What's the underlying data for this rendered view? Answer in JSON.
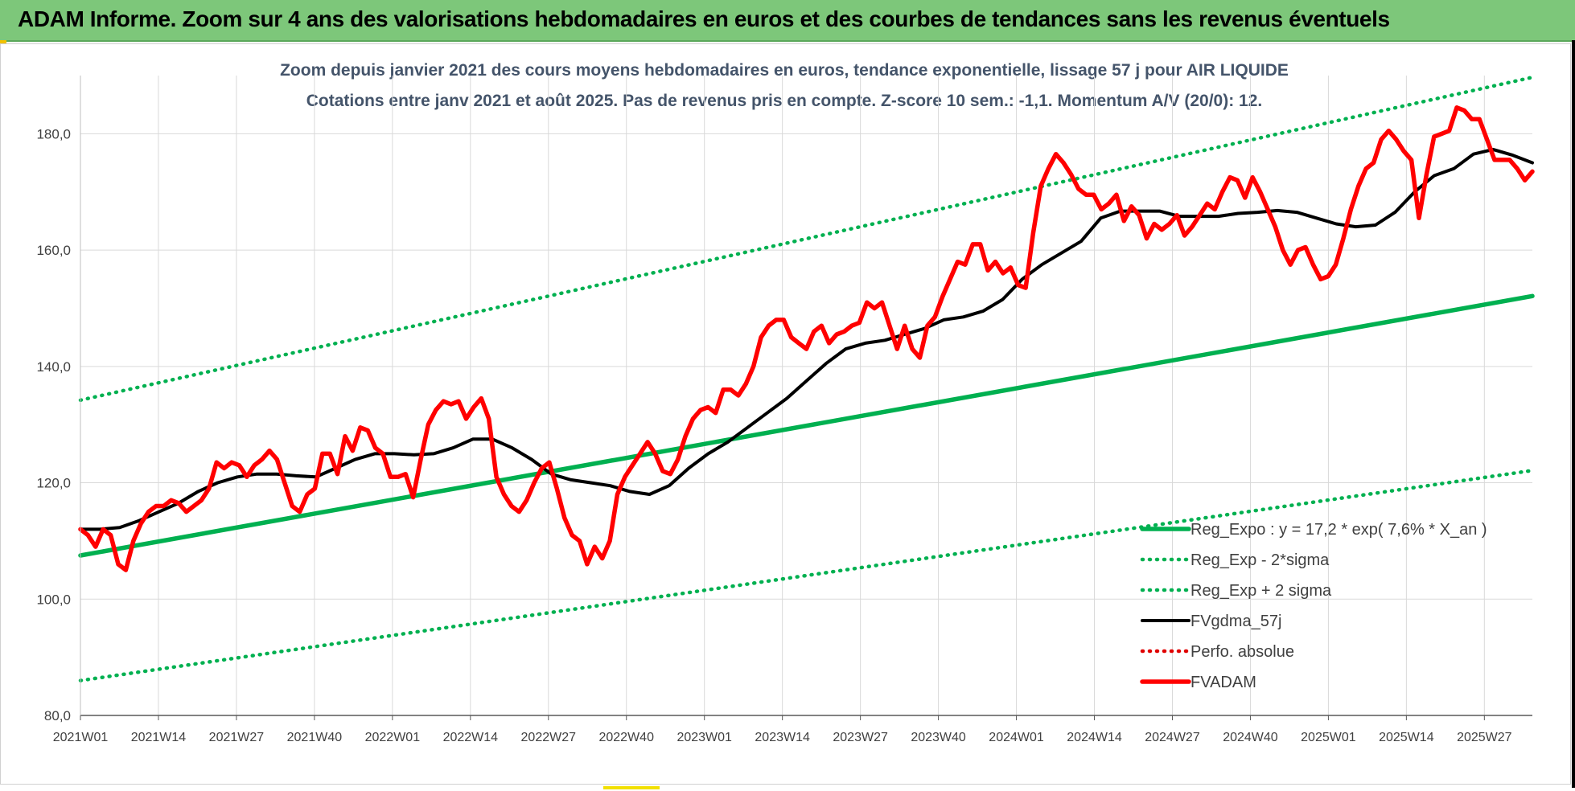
{
  "header": {
    "title": "ADAM Informe. Zoom sur 4 ans des valorisations hebdomadaires en euros et des courbes de tendances sans les revenus éventuels"
  },
  "chart_data": {
    "type": "line",
    "title_line1": "Zoom depuis janvier 2021 des cours moyens hebdomadaires en euros, tendance exponentielle, lissage 57 j pour AIR LIQUIDE",
    "title_line2": "Cotations entre janv 2021 et août 2025.  Pas de revenus pris en compte. Z-score 10 sem.: -1,1. Momentum A/V (20/0): 12.",
    "ylim": [
      80,
      190
    ],
    "yticks": [
      80,
      100,
      120,
      140,
      160,
      180
    ],
    "ytick_labels": [
      "80,0",
      "100,0",
      "120,0",
      "140,0",
      "160,0",
      "180,0"
    ],
    "xtick_labels": [
      "2021W01",
      "2021W14",
      "2021W27",
      "2021W40",
      "2022W01",
      "2022W14",
      "2022W27",
      "2022W40",
      "2023W01",
      "2023W14",
      "2023W27",
      "2023W40",
      "2024W01",
      "2024W14",
      "2024W27",
      "2024W40",
      "2025W01",
      "2025W14",
      "2025W27"
    ],
    "grid": true,
    "legend_position": "bottom-right",
    "series": [
      {
        "name": "Reg_Expo : y = 17,2 * exp( 7,6% *  X_an )",
        "style": "solid-thick",
        "color": "#00b050",
        "points": [
          [
            0,
            107.5
          ],
          [
            238,
            152.1
          ]
        ]
      },
      {
        "name": "Reg_Exp - 2*sigma",
        "style": "dotted",
        "color": "#00b050",
        "points": [
          [
            0,
            86.0
          ],
          [
            238,
            122.1
          ]
        ]
      },
      {
        "name": "Reg_Exp + 2 sigma",
        "style": "dotted",
        "color": "#00b050",
        "points": [
          [
            0,
            134.2
          ],
          [
            238,
            189.7
          ]
        ]
      },
      {
        "name": "FVgdma_57j",
        "style": "solid",
        "color": "#000000",
        "points": [
          [
            0,
            112
          ],
          [
            4,
            112
          ],
          [
            8,
            112.3
          ],
          [
            12,
            113.5
          ],
          [
            16,
            115
          ],
          [
            20,
            116.5
          ],
          [
            24,
            118.5
          ],
          [
            28,
            120
          ],
          [
            32,
            121
          ],
          [
            36,
            121.5
          ],
          [
            40,
            121.5
          ],
          [
            44,
            121.2
          ],
          [
            48,
            121
          ],
          [
            52,
            122.5
          ],
          [
            56,
            124
          ],
          [
            60,
            125
          ],
          [
            64,
            125
          ],
          [
            68,
            124.8
          ],
          [
            72,
            125
          ],
          [
            76,
            126
          ],
          [
            80,
            127.5
          ],
          [
            84,
            127.5
          ],
          [
            88,
            126
          ],
          [
            92,
            124
          ],
          [
            96,
            121.5
          ],
          [
            100,
            120.5
          ],
          [
            104,
            120
          ],
          [
            108,
            119.5
          ],
          [
            112,
            118.5
          ],
          [
            116,
            118
          ],
          [
            120,
            119.5
          ],
          [
            124,
            122.5
          ],
          [
            128,
            125
          ],
          [
            132,
            127
          ],
          [
            136,
            129.5
          ],
          [
            140,
            132
          ],
          [
            144,
            134.5
          ],
          [
            148,
            137.5
          ],
          [
            152,
            140.5
          ],
          [
            156,
            143
          ],
          [
            160,
            144
          ],
          [
            164,
            144.5
          ],
          [
            168,
            145.5
          ],
          [
            172,
            146.5
          ],
          [
            176,
            148
          ],
          [
            180,
            148.5
          ],
          [
            184,
            149.5
          ],
          [
            188,
            151.5
          ],
          [
            192,
            155
          ],
          [
            196,
            157.5
          ],
          [
            200,
            159.5
          ],
          [
            204,
            161.5
          ],
          [
            208,
            165.5
          ],
          [
            212,
            166.7
          ],
          [
            216,
            166.7
          ],
          [
            220,
            166.7
          ],
          [
            224,
            165.8
          ],
          [
            228,
            165.8
          ],
          [
            232,
            165.8
          ],
          [
            236,
            166.3
          ],
          [
            240,
            166.5
          ],
          [
            244,
            166.8
          ],
          [
            248,
            166.5
          ],
          [
            252,
            165.5
          ],
          [
            256,
            164.5
          ],
          [
            260,
            164
          ],
          [
            264,
            164.3
          ],
          [
            268,
            166.5
          ],
          [
            272,
            170
          ],
          [
            276,
            172.8
          ],
          [
            280,
            174
          ],
          [
            284,
            176.5
          ],
          [
            288,
            177.3
          ],
          [
            292,
            176.3
          ],
          [
            296,
            175
          ]
        ]
      },
      {
        "name": "Perfo. absolue",
        "style": "dotted",
        "color": "#e00000",
        "points": []
      },
      {
        "name": "FVADAM",
        "style": "solid-thick",
        "color": "#ff0000",
        "points": [
          [
            0,
            112
          ],
          [
            2,
            111
          ],
          [
            4,
            109
          ],
          [
            6,
            112
          ],
          [
            8,
            111
          ],
          [
            10,
            106
          ],
          [
            12,
            105
          ],
          [
            14,
            110
          ],
          [
            16,
            113
          ],
          [
            18,
            115
          ],
          [
            20,
            116
          ],
          [
            22,
            116
          ],
          [
            24,
            117
          ],
          [
            26,
            116.5
          ],
          [
            28,
            115
          ],
          [
            30,
            116
          ],
          [
            32,
            117
          ],
          [
            34,
            119
          ],
          [
            36,
            123.5
          ],
          [
            38,
            122.5
          ],
          [
            40,
            123.5
          ],
          [
            42,
            123
          ],
          [
            44,
            121
          ],
          [
            46,
            123
          ],
          [
            48,
            124
          ],
          [
            50,
            125.5
          ],
          [
            52,
            124
          ],
          [
            54,
            120
          ],
          [
            56,
            116
          ],
          [
            58,
            115
          ],
          [
            60,
            118
          ],
          [
            62,
            119
          ],
          [
            64,
            125
          ],
          [
            66,
            125
          ],
          [
            68,
            121.5
          ],
          [
            70,
            128
          ],
          [
            72,
            125.5
          ],
          [
            74,
            129.5
          ],
          [
            76,
            129
          ],
          [
            78,
            126
          ],
          [
            80,
            125
          ],
          [
            82,
            121
          ],
          [
            84,
            121
          ],
          [
            86,
            121.5
          ],
          [
            88,
            117.5
          ],
          [
            90,
            124
          ],
          [
            92,
            130
          ],
          [
            94,
            132.5
          ],
          [
            96,
            134
          ],
          [
            98,
            133.5
          ],
          [
            100,
            134
          ],
          [
            102,
            131
          ],
          [
            104,
            133
          ],
          [
            106,
            134.5
          ],
          [
            108,
            131
          ],
          [
            110,
            121
          ],
          [
            112,
            118
          ],
          [
            114,
            116
          ],
          [
            116,
            115
          ],
          [
            118,
            117
          ],
          [
            120,
            120
          ],
          [
            122,
            122.5
          ],
          [
            124,
            123.5
          ],
          [
            126,
            119
          ],
          [
            128,
            114
          ],
          [
            130,
            111
          ],
          [
            132,
            110
          ],
          [
            134,
            106
          ],
          [
            136,
            109
          ],
          [
            138,
            107
          ],
          [
            140,
            110
          ],
          [
            142,
            118
          ],
          [
            144,
            121
          ],
          [
            146,
            123
          ],
          [
            148,
            125
          ],
          [
            150,
            127
          ],
          [
            152,
            125
          ],
          [
            154,
            122
          ],
          [
            156,
            121.5
          ],
          [
            158,
            124
          ],
          [
            160,
            128
          ],
          [
            162,
            131
          ],
          [
            164,
            132.5
          ],
          [
            166,
            133
          ],
          [
            168,
            132
          ],
          [
            170,
            136
          ],
          [
            172,
            136
          ],
          [
            174,
            135
          ],
          [
            176,
            137
          ],
          [
            178,
            140
          ],
          [
            180,
            145
          ],
          [
            182,
            147
          ],
          [
            184,
            148
          ],
          [
            186,
            148
          ],
          [
            188,
            145
          ],
          [
            190,
            144
          ],
          [
            192,
            143
          ],
          [
            194,
            146
          ],
          [
            196,
            147
          ],
          [
            198,
            144
          ],
          [
            200,
            145.5
          ],
          [
            202,
            146
          ],
          [
            204,
            147
          ],
          [
            206,
            147.5
          ],
          [
            208,
            151
          ],
          [
            210,
            150
          ],
          [
            212,
            151
          ],
          [
            214,
            147
          ],
          [
            216,
            143
          ],
          [
            218,
            147
          ],
          [
            220,
            143
          ],
          [
            222,
            141.5
          ],
          [
            224,
            147
          ],
          [
            226,
            148.5
          ],
          [
            228,
            152
          ],
          [
            230,
            155
          ],
          [
            232,
            158
          ],
          [
            234,
            157.5
          ],
          [
            236,
            161
          ],
          [
            238,
            161
          ],
          [
            240,
            156.5
          ],
          [
            242,
            158
          ],
          [
            244,
            156
          ],
          [
            246,
            157
          ],
          [
            248,
            154
          ],
          [
            250,
            153.5
          ],
          [
            252,
            163
          ],
          [
            254,
            171
          ],
          [
            256,
            174
          ],
          [
            258,
            176.5
          ],
          [
            260,
            175
          ],
          [
            262,
            173
          ],
          [
            264,
            170.5
          ],
          [
            266,
            169.5
          ],
          [
            268,
            169.5
          ],
          [
            270,
            167
          ],
          [
            272,
            168
          ],
          [
            274,
            169.5
          ],
          [
            276,
            165
          ],
          [
            278,
            167.5
          ],
          [
            280,
            166
          ],
          [
            282,
            162
          ],
          [
            284,
            164.5
          ],
          [
            286,
            163.5
          ],
          [
            288,
            164.5
          ],
          [
            290,
            166
          ],
          [
            292,
            162.5
          ],
          [
            294,
            164
          ],
          [
            296,
            166
          ],
          [
            298,
            168
          ],
          [
            300,
            167
          ],
          [
            302,
            170
          ],
          [
            304,
            172.5
          ],
          [
            306,
            172
          ],
          [
            308,
            169
          ],
          [
            310,
            172.5
          ],
          [
            312,
            170
          ],
          [
            314,
            167
          ],
          [
            316,
            164
          ],
          [
            318,
            160
          ],
          [
            320,
            157.5
          ],
          [
            322,
            160
          ],
          [
            324,
            160.5
          ],
          [
            326,
            157.5
          ],
          [
            328,
            155
          ],
          [
            330,
            155.5
          ],
          [
            332,
            157.5
          ],
          [
            334,
            162
          ],
          [
            336,
            167
          ],
          [
            338,
            171
          ],
          [
            340,
            174
          ],
          [
            342,
            175
          ],
          [
            344,
            179
          ],
          [
            346,
            180.5
          ],
          [
            348,
            179
          ],
          [
            350,
            177
          ],
          [
            352,
            175.5
          ],
          [
            354,
            165.5
          ],
          [
            356,
            173
          ],
          [
            358,
            179.5
          ],
          [
            360,
            180
          ],
          [
            362,
            180.5
          ],
          [
            364,
            184.5
          ],
          [
            366,
            184
          ],
          [
            368,
            182.5
          ],
          [
            370,
            182.5
          ],
          [
            372,
            179
          ],
          [
            374,
            175.5
          ],
          [
            376,
            175.5
          ],
          [
            378,
            175.5
          ],
          [
            380,
            174
          ],
          [
            382,
            172
          ],
          [
            384,
            173.5
          ]
        ]
      }
    ]
  }
}
